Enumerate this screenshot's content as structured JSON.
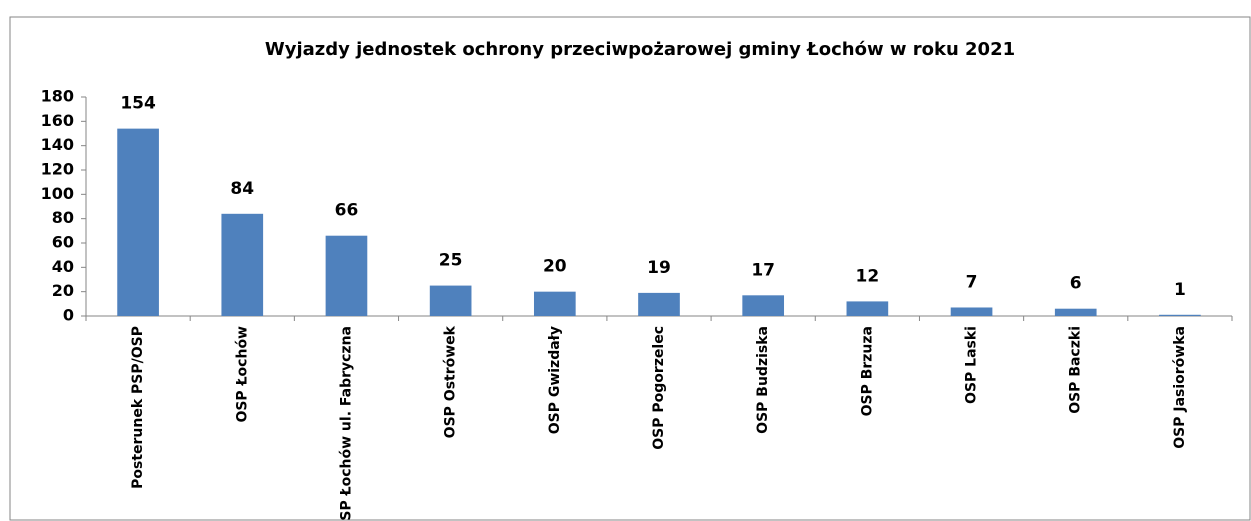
{
  "chart_data": {
    "type": "bar",
    "title": "Wyjazdy jednostek ochrony przeciwpożarowej gminy Łochów w roku 2021",
    "categories": [
      "Posterunek PSP/OSP",
      "OSP Łochów",
      "OSP Łochów ul. Fabryczna",
      "OSP Ostrówek",
      "OSP Gwizdały",
      "OSP Pogorzelec",
      "OSP Budziska",
      "OSP Brzuza",
      "OSP Laski",
      "OSP Baczki",
      "OSP Jasiorówka"
    ],
    "values": [
      154,
      84,
      66,
      25,
      20,
      19,
      17,
      12,
      7,
      6,
      1
    ],
    "color": "#4f81bd",
    "ylim": [
      0,
      180
    ],
    "yticks": [
      0,
      20,
      40,
      60,
      80,
      100,
      120,
      140,
      160,
      180
    ],
    "grid": false,
    "data_labels": true
  }
}
